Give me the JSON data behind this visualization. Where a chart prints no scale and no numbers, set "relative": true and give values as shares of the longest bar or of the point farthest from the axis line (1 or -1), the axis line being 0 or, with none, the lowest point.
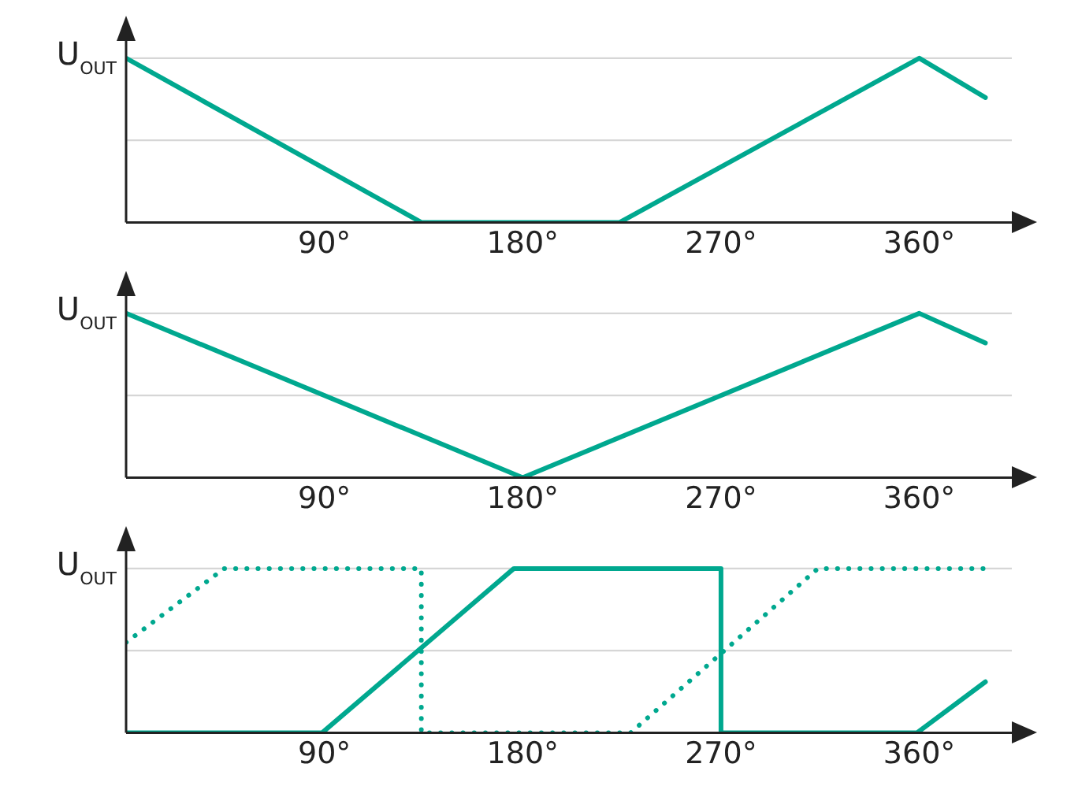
{
  "chart_data": [
    {
      "type": "line",
      "relative": true,
      "ylabel": "U$_{OUT}$",
      "xlim": [
        0,
        402
      ],
      "xticks": [
        {
          "value": 90,
          "label": "90°"
        },
        {
          "value": 180,
          "label": "180°"
        },
        {
          "value": 270,
          "label": "270°"
        },
        {
          "value": 360,
          "label": "360°"
        }
      ],
      "legend": false,
      "ref_lines": [
        {
          "axis": "y",
          "value": 0.5,
          "color": "#d6d6d6"
        },
        {
          "axis": "y",
          "value": 1,
          "color": "#d6d6d6"
        }
      ],
      "series": [
        {
          "color": "#00a88f",
          "line_style": "solid",
          "x": [
            0,
            134,
            224,
            360,
            390
          ],
          "values": [
            1,
            0,
            0,
            1,
            0.76
          ]
        }
      ]
    },
    {
      "type": "line",
      "relative": true,
      "ylabel": "U$_{OUT}$",
      "xlim": [
        0,
        402
      ],
      "xticks": [
        {
          "value": 90,
          "label": "90°"
        },
        {
          "value": 180,
          "label": "180°"
        },
        {
          "value": 270,
          "label": "270°"
        },
        {
          "value": 360,
          "label": "360°"
        }
      ],
      "legend": false,
      "ref_lines": [
        {
          "axis": "y",
          "value": 0.5,
          "color": "#d6d6d6"
        },
        {
          "axis": "y",
          "value": 1,
          "color": "#d6d6d6"
        }
      ],
      "series": [
        {
          "color": "#00a88f",
          "line_style": "solid",
          "x": [
            0,
            180,
            360,
            390
          ],
          "values": [
            1,
            0,
            1,
            0.82
          ]
        }
      ]
    },
    {
      "type": "line",
      "relative": true,
      "ylabel": "U$_{OUT}$",
      "xlim": [
        0,
        402
      ],
      "xticks": [
        {
          "value": 90,
          "label": "90°"
        },
        {
          "value": 180,
          "label": "180°"
        },
        {
          "value": 270,
          "label": "270°"
        },
        {
          "value": 360,
          "label": "360°"
        }
      ],
      "legend": false,
      "ref_lines": [
        {
          "axis": "y",
          "value": 0.5,
          "color": "#d6d6d6"
        },
        {
          "axis": "y",
          "value": 1,
          "color": "#d6d6d6"
        }
      ],
      "series": [
        {
          "color": "#00a88f",
          "line_style": "solid",
          "x": [
            0,
            89,
            176,
            270,
            270,
            359,
            390
          ],
          "values": [
            0,
            0,
            1,
            1,
            0,
            0,
            0.31
          ]
        },
        {
          "color": "#00a88f",
          "line_style": "dotted",
          "x": [
            0,
            44.5,
            134,
            134,
            229,
            314,
            391
          ],
          "values": [
            0.55,
            1,
            1,
            0,
            0,
            1,
            1
          ]
        }
      ]
    }
  ]
}
